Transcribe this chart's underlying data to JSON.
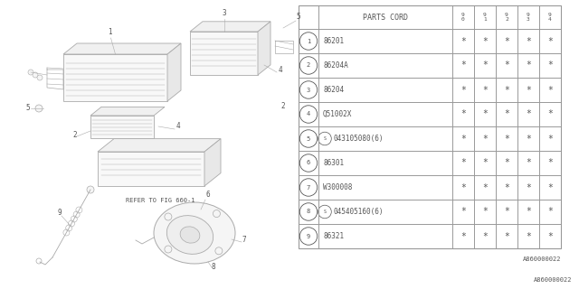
{
  "bg_color": "#ffffff",
  "parts": [
    {
      "num": "1",
      "code": "86201",
      "special": false
    },
    {
      "num": "2",
      "code": "86204A",
      "special": false
    },
    {
      "num": "3",
      "code": "86204",
      "special": false
    },
    {
      "num": "4",
      "code": "Q51002X",
      "special": false
    },
    {
      "num": "5",
      "code": "043105080(6)",
      "special": true
    },
    {
      "num": "6",
      "code": "86301",
      "special": false
    },
    {
      "num": "7",
      "code": "W300008",
      "special": false
    },
    {
      "num": "8",
      "code": "045405160(6)",
      "special": true
    },
    {
      "num": "9",
      "code": "86321",
      "special": false
    }
  ],
  "year_labels": [
    "9\n0",
    "9\n1",
    "9\n2",
    "9\n3",
    "9\n4"
  ],
  "watermark": "A860000022",
  "ref_text": "REFER TO FIG 660-1",
  "line_color": "#999999",
  "text_color": "#555555",
  "sketch_color": "#aaaaaa"
}
